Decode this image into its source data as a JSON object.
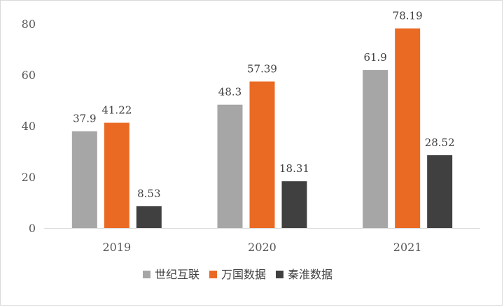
{
  "chart_data": {
    "type": "bar",
    "categories": [
      "2019",
      "2020",
      "2021"
    ],
    "series": [
      {
        "name": "世纪互联",
        "color": "#a6a6a6",
        "values": [
          37.9,
          48.3,
          61.9
        ],
        "labels": [
          "37.9",
          "48.3",
          "61.9"
        ]
      },
      {
        "name": "万国数据",
        "color": "#ea6a24",
        "values": [
          41.22,
          57.39,
          78.19
        ],
        "labels": [
          "41.22",
          "57.39",
          "78.19"
        ]
      },
      {
        "name": "秦淮数据",
        "color": "#404040",
        "values": [
          8.53,
          18.31,
          28.52
        ],
        "labels": [
          "8.53",
          "18.31",
          "28.52"
        ]
      }
    ],
    "ylim": [
      0,
      80
    ],
    "yticks": [
      "0",
      "20",
      "40",
      "60",
      "80"
    ],
    "grid": false,
    "legend_position": "bottom",
    "title": "",
    "xlabel": "",
    "ylabel": ""
  }
}
